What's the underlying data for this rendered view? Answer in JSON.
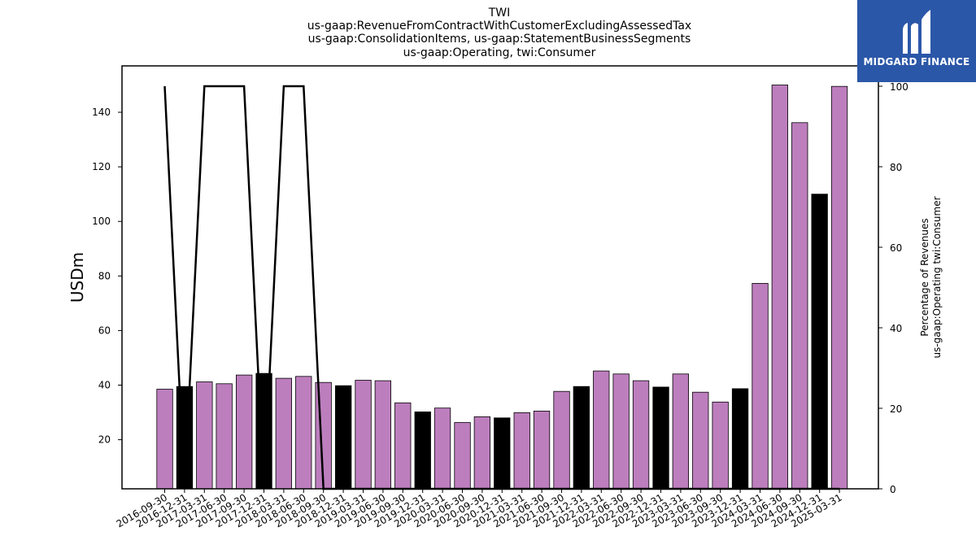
{
  "chart_data": {
    "type": "bar",
    "title_lines": [
      "TWI",
      "us-gaap:RevenueFromContractWithCustomerExcludingAssessedTax",
      "us-gaap:ConsolidationItems, us-gaap:StatementBusinessSegments",
      "us-gaap:Operating, twi:Consumer"
    ],
    "ylabel": "USDm",
    "y2label_lines": [
      "Percentage of Revenues",
      "us-gaap:Operating twi:Consumer"
    ],
    "ylim": [
      2,
      157
    ],
    "y2lim": [
      0,
      100
    ],
    "yticks": [
      20,
      40,
      60,
      80,
      100,
      120,
      140
    ],
    "y2ticks": [
      0,
      20,
      40,
      60,
      80,
      100
    ],
    "categories": [
      "2016-09-30",
      "2016-12-31",
      "2017-03-31",
      "2017-06-30",
      "2017-09-30",
      "2017-12-31",
      "2018-03-31",
      "2018-06-30",
      "2018-09-30",
      "2018-12-31",
      "2019-03-31",
      "2019-06-30",
      "2019-09-30",
      "2019-12-31",
      "2020-03-31",
      "2020-06-30",
      "2020-09-30",
      "2020-12-31",
      "2021-03-31",
      "2021-06-30",
      "2021-09-30",
      "2021-12-31",
      "2022-03-31",
      "2022-06-30",
      "2022-09-30",
      "2022-12-31",
      "2023-03-31",
      "2023-06-30",
      "2023-09-30",
      "2023-12-31",
      "2024-03-31",
      "2024-06-30",
      "2024-09-30",
      "2024-12-31",
      "2025-03-31"
    ],
    "values": [
      38.5,
      39.5,
      41.2,
      40.5,
      43.7,
      44.3,
      42.5,
      43.2,
      41.0,
      39.8,
      41.8,
      41.6,
      33.5,
      30.2,
      31.6,
      26.3,
      28.4,
      28.0,
      29.9,
      30.5,
      37.7,
      39.5,
      45.2,
      44.1,
      41.6,
      39.3,
      44.1,
      37.4,
      33.8,
      38.7,
      77.3,
      150.0,
      136.2,
      110.0,
      149.5
    ],
    "highlight_quarter_ends": [
      "12-31"
    ],
    "pct_line": [
      100,
      0,
      100,
      100,
      100,
      0,
      100,
      100,
      0,
      0,
      0,
      0,
      0,
      0,
      0,
      0,
      0,
      0,
      0,
      0,
      0,
      0,
      0,
      0,
      0,
      0,
      0,
      0,
      0,
      0,
      0,
      0,
      0,
      0,
      0
    ],
    "colors": {
      "bar_default": "#bd7ebe",
      "bar_highlight": "#000000",
      "line": "#000000"
    },
    "grid": false
  },
  "logo": {
    "text": "MIDGARD FINANCE",
    "icon": "midgard-logo-icon",
    "background": "#2b57a8"
  }
}
